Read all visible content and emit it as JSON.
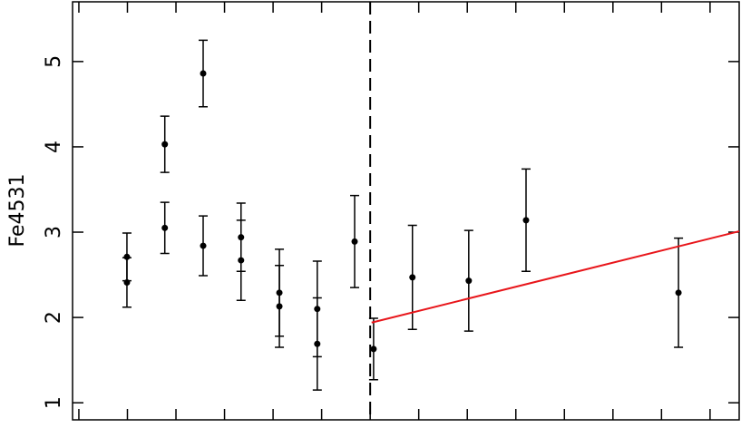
{
  "chart_data": {
    "type": "scatter",
    "ylabel": "Fe4531",
    "x": [
      0.99,
      0.99,
      1.77,
      1.77,
      2.56,
      2.56,
      3.34,
      3.34,
      4.13,
      4.13,
      4.91,
      4.91,
      5.68,
      6.07,
      6.87,
      8.03,
      9.21,
      12.35
    ],
    "values": [
      2.71,
      2.41,
      4.03,
      3.05,
      4.86,
      2.84,
      2.94,
      2.67,
      2.29,
      2.13,
      2.1,
      1.69,
      2.89,
      1.63,
      2.47,
      2.43,
      3.14,
      2.29
    ],
    "errors": [
      0.28,
      0.29,
      0.33,
      0.3,
      0.39,
      0.35,
      0.4,
      0.47,
      0.51,
      0.48,
      0.56,
      0.54,
      0.54,
      0.36,
      0.61,
      0.59,
      0.6,
      0.64
    ],
    "color": "#000000",
    "vline": 6.0,
    "fit": {
      "x": [
        6.03,
        13.6
      ],
      "values": [
        1.94,
        3.01
      ],
      "color": "#e8161b"
    },
    "xlim": [
      -0.13,
      13.6
    ],
    "xticks": [
      0,
      1,
      2,
      3,
      4,
      5,
      6,
      7,
      8,
      9,
      10,
      11,
      12,
      13
    ],
    "ylim": [
      0.8,
      5.7
    ],
    "yticks": [
      1,
      2,
      3,
      4,
      5
    ]
  }
}
